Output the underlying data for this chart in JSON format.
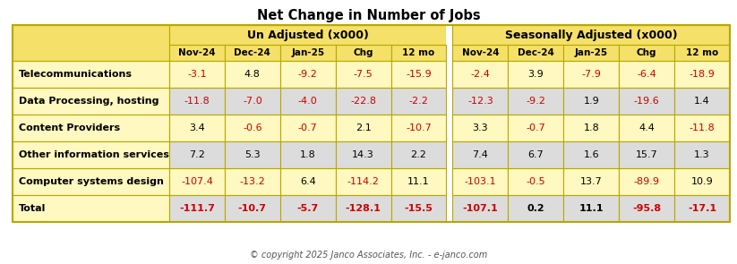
{
  "title": "Net Change in Number of Jobs",
  "copyright": "© copyright 2025 Janco Associates, Inc. - e-janco.com",
  "col_headers_group": [
    "Un Adjusted (x000)",
    "Seasonally Adjusted (x000)"
  ],
  "col_headers": [
    "Nov-24",
    "Dec-24",
    "Jan-25",
    "Chg",
    "12 mo",
    "Nov-24",
    "Dec-24",
    "Jan-25",
    "Chg",
    "12 mo"
  ],
  "row_labels": [
    "Telecommunications",
    "Data Processing, hosting",
    "Content Providers",
    "Other information services",
    "Computer systems design",
    "Total"
  ],
  "data": [
    [
      "-3.1",
      "4.8",
      "-9.2",
      "-7.5",
      "-15.9",
      "-2.4",
      "3.9",
      "-7.9",
      "-6.4",
      "-18.9"
    ],
    [
      "-11.8",
      "-7.0",
      "-4.0",
      "-22.8",
      "-2.2",
      "-12.3",
      "-9.2",
      "1.9",
      "-19.6",
      "1.4"
    ],
    [
      "3.4",
      "-0.6",
      "-0.7",
      "2.1",
      "-10.7",
      "3.3",
      "-0.7",
      "1.8",
      "4.4",
      "-11.8"
    ],
    [
      "7.2",
      "5.3",
      "1.8",
      "14.3",
      "2.2",
      "7.4",
      "6.7",
      "1.6",
      "15.7",
      "1.3"
    ],
    [
      "-107.4",
      "-13.2",
      "6.4",
      "-114.2",
      "11.1",
      "-103.1",
      "-0.5",
      "13.7",
      "-89.9",
      "10.9"
    ],
    [
      "-111.7",
      "-10.7",
      "-5.7",
      "-128.1",
      "-15.5",
      "-107.1",
      "0.2",
      "11.1",
      "-95.8",
      "-17.1"
    ]
  ],
  "header_bg": "#F5E06A",
  "row_label_bg": "#FFF8C0",
  "alt_row_bg": "#DCDCDC",
  "white_row_bg": "#FFF8C0",
  "total_row_bg": "#DCDCDC",
  "border_color": "#B8A800",
  "negative_color": "#CC0000",
  "positive_color": "#000000",
  "bold_rows": [
    5
  ],
  "figw": 8.23,
  "figh": 2.95,
  "dpi": 100
}
